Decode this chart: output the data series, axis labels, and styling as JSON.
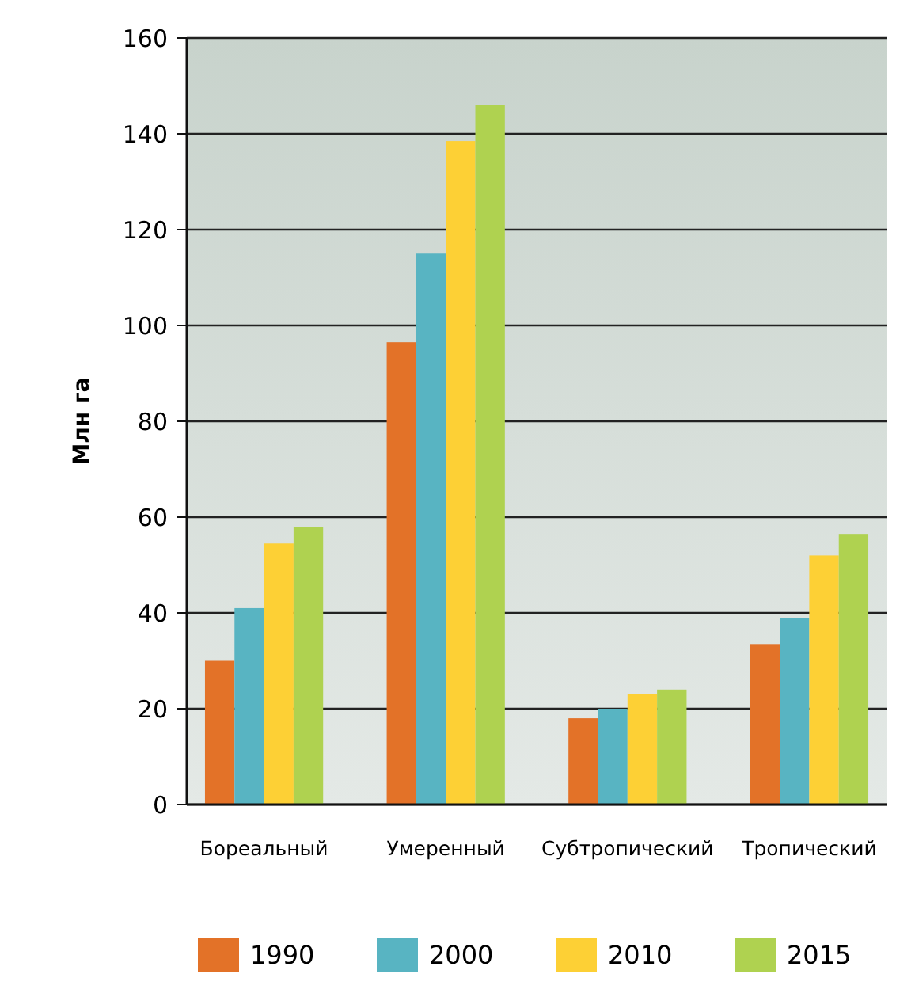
{
  "chart_data": {
    "type": "bar",
    "ylabel": "Млн га",
    "categories": [
      "Бореальный",
      "Умеренный",
      "Субтропический",
      "Тропический"
    ],
    "series": [
      {
        "name": "1990",
        "color": "#e37228",
        "values": [
          30,
          96.5,
          18,
          33.5
        ]
      },
      {
        "name": "2000",
        "color": "#58b4c2",
        "values": [
          41,
          115,
          20,
          39
        ]
      },
      {
        "name": "2010",
        "color": "#fdd035",
        "values": [
          54.5,
          138.5,
          23,
          52
        ]
      },
      {
        "name": "2015",
        "color": "#afd250",
        "values": [
          58,
          146,
          24,
          56.5
        ]
      }
    ],
    "ylim": [
      0,
      160
    ],
    "yticks": [
      0,
      20,
      40,
      60,
      80,
      100,
      120,
      140,
      160
    ],
    "grid": "y",
    "legend": "bottom"
  }
}
